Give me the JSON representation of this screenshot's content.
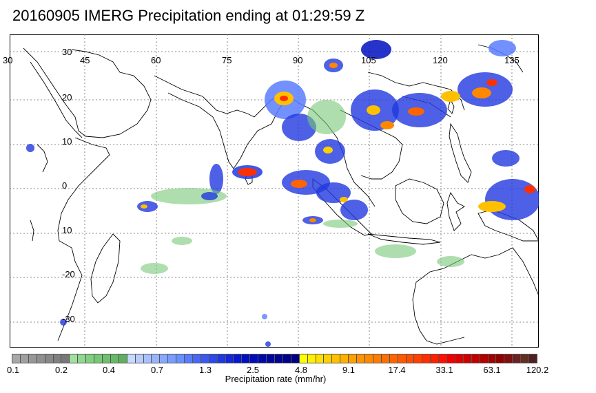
{
  "title": "20160905 IMERG Precipitation ending at 01:29:59 Z",
  "lon_labels": [
    "30",
    "45",
    "60",
    "75",
    "90",
    "105",
    "120",
    "135"
  ],
  "lat_labels": [
    "30",
    "20",
    "10",
    "0",
    "10",
    "-20",
    "-30"
  ],
  "colorbar": {
    "label": "Precipitation rate (mm/hr)",
    "tick_labels": [
      "0.1",
      "0.2",
      "0.4",
      "0.7",
      "1.3",
      "2.5",
      "4.8",
      "9.1",
      "17.4",
      "33.1",
      "63.1",
      "120.2"
    ],
    "colors": [
      "#a8a8a8",
      "#a0a0a0",
      "#989898",
      "#909090",
      "#888888",
      "#808080",
      "#787878",
      "#a0e0a0",
      "#90d890",
      "#80d080",
      "#78c878",
      "#70c070",
      "#68b868",
      "#60b060",
      "#c8d8ff",
      "#b8ccff",
      "#a8c0ff",
      "#98b4ff",
      "#88a8ff",
      "#789cff",
      "#6890ff",
      "#5a7cff",
      "#4a68f8",
      "#3c58f0",
      "#2e48e8",
      "#2038e0",
      "#1428d8",
      "#0818d0",
      "#0010c0",
      "#000cb4",
      "#0008a8",
      "#00069c",
      "#000490",
      "#000288",
      "#000080",
      "#ffff00",
      "#fff000",
      "#ffe000",
      "#ffd000",
      "#ffc000",
      "#ffb000",
      "#ffa000",
      "#ff9400",
      "#ff8800",
      "#ff7c00",
      "#ff7000",
      "#ff6400",
      "#ff5800",
      "#ff4c00",
      "#ff4000",
      "#ff3000",
      "#ff2000",
      "#ff1000",
      "#f00000",
      "#e00000",
      "#d00000",
      "#c00000",
      "#b00000",
      "#a00000",
      "#900000",
      "#801010",
      "#702020",
      "#603020",
      "#502020"
    ]
  }
}
